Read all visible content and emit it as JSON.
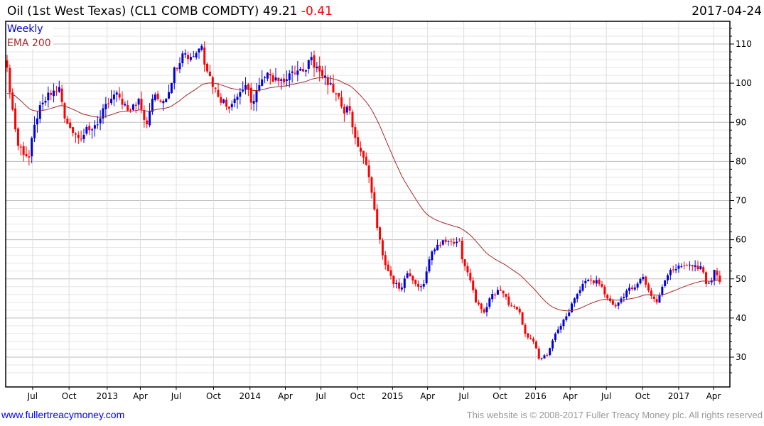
{
  "header": {
    "symbol_title": "Oil (1st West Texas) (CL1 COMB COMDTY)",
    "last": "49.21",
    "change": "-0.41",
    "date": "2017-04-24"
  },
  "footer": {
    "link": "www.fullertreacymoney.com",
    "copyright": "This website is © 2008-2017 Fuller Treacy Money plc. All rights reserved"
  },
  "colors": {
    "up": "#0000dd",
    "down": "#ff0000",
    "ema": "#a52a2a",
    "legend_weekly": "#0000dd"
  },
  "chart_data": {
    "type": "candlestick",
    "title": "Oil (1st West Texas) (CL1 COMB COMDTY)",
    "legend": [
      {
        "label": "Weekly"
      },
      {
        "label": "EMA 200"
      }
    ],
    "legend_placement": "top-left",
    "ylim": [
      25,
      115
    ],
    "yticks": [
      30,
      40,
      50,
      60,
      70,
      80,
      90,
      100,
      110
    ],
    "xticks": [
      {
        "label": "Jul",
        "week": 9.3
      },
      {
        "label": "Oct",
        "week": 22.6
      },
      {
        "label": "2013",
        "week": 36.5
      },
      {
        "label": "Apr",
        "week": 48.6
      },
      {
        "label": "Jul",
        "week": 61.7
      },
      {
        "label": "Oct",
        "week": 75.3
      },
      {
        "label": "2014",
        "week": 88.6
      },
      {
        "label": "Apr",
        "week": 101.5
      },
      {
        "label": "Jul",
        "week": 114.5
      },
      {
        "label": "Oct",
        "week": 127.8
      },
      {
        "label": "2015",
        "week": 140.6
      },
      {
        "label": "Apr",
        "week": 153.4
      },
      {
        "label": "Jul",
        "week": 166.6
      },
      {
        "label": "Oct",
        "week": 179.8
      },
      {
        "label": "2016",
        "week": 192.8
      },
      {
        "label": "Apr",
        "week": 205.4
      },
      {
        "label": "Jul",
        "week": 218.6
      },
      {
        "label": "Oct",
        "week": 231.8
      },
      {
        "label": "2017",
        "week": 245.0
      },
      {
        "label": "Apr",
        "week": 257.7
      }
    ],
    "total_weeks": 261,
    "ema_period_weeks": 40,
    "ema_start": 97,
    "close_keypoints": [
      [
        0,
        104
      ],
      [
        1,
        97.6
      ],
      [
        4,
        84
      ],
      [
        8,
        81
      ],
      [
        9,
        86
      ],
      [
        11,
        91
      ],
      [
        13,
        95
      ],
      [
        16,
        97
      ],
      [
        19,
        99
      ],
      [
        21,
        91
      ],
      [
        23,
        88.6
      ],
      [
        26,
        86
      ],
      [
        30,
        88
      ],
      [
        34,
        91
      ],
      [
        38,
        96
      ],
      [
        40,
        97.6
      ],
      [
        44,
        93
      ],
      [
        48,
        96
      ],
      [
        51,
        89.5
      ],
      [
        53,
        96
      ],
      [
        58,
        96
      ],
      [
        61,
        104
      ],
      [
        64,
        107.6
      ],
      [
        67,
        106.7
      ],
      [
        71,
        109.5
      ],
      [
        73,
        103
      ],
      [
        76,
        98.6
      ],
      [
        80,
        94
      ],
      [
        83,
        96
      ],
      [
        87,
        99.5
      ],
      [
        89,
        95
      ],
      [
        92,
        99.5
      ],
      [
        96,
        102
      ],
      [
        100,
        101
      ],
      [
        104,
        103
      ],
      [
        108,
        103
      ],
      [
        111,
        106.7
      ],
      [
        114,
        103
      ],
      [
        117,
        99.5
      ],
      [
        119,
        97.6
      ],
      [
        122,
        94
      ],
      [
        125,
        93
      ],
      [
        127,
        86
      ],
      [
        130,
        81
      ],
      [
        132,
        76
      ],
      [
        134,
        67.7
      ],
      [
        135,
        63
      ],
      [
        137,
        56
      ],
      [
        139,
        52
      ],
      [
        141,
        48.7
      ],
      [
        144,
        47.8
      ],
      [
        146,
        51.4
      ],
      [
        149,
        48.7
      ],
      [
        152,
        48.7
      ],
      [
        154,
        55
      ],
      [
        157,
        58.7
      ],
      [
        161,
        59.6
      ],
      [
        165,
        59.6
      ],
      [
        166,
        55
      ],
      [
        169,
        49.6
      ],
      [
        171,
        44
      ],
      [
        174,
        41.4
      ],
      [
        176,
        45
      ],
      [
        180,
        47
      ],
      [
        184,
        43
      ],
      [
        187,
        41.4
      ],
      [
        189,
        36
      ],
      [
        192,
        34
      ],
      [
        194,
        29.6
      ],
      [
        197,
        30.5
      ],
      [
        200,
        36
      ],
      [
        202,
        38
      ],
      [
        205,
        41.4
      ],
      [
        207,
        45
      ],
      [
        210,
        48.7
      ],
      [
        213,
        49.6
      ],
      [
        216,
        48.7
      ],
      [
        219,
        45
      ],
      [
        222,
        43
      ],
      [
        226,
        47
      ],
      [
        229,
        47.8
      ],
      [
        232,
        50.5
      ],
      [
        234,
        47
      ],
      [
        237,
        44
      ],
      [
        240,
        49.6
      ],
      [
        242,
        52.3
      ],
      [
        246,
        53.2
      ],
      [
        250,
        53.2
      ],
      [
        253,
        53.2
      ],
      [
        255,
        48.7
      ],
      [
        257,
        49.6
      ],
      [
        258,
        52.3
      ],
      [
        260,
        49.21
      ]
    ]
  }
}
